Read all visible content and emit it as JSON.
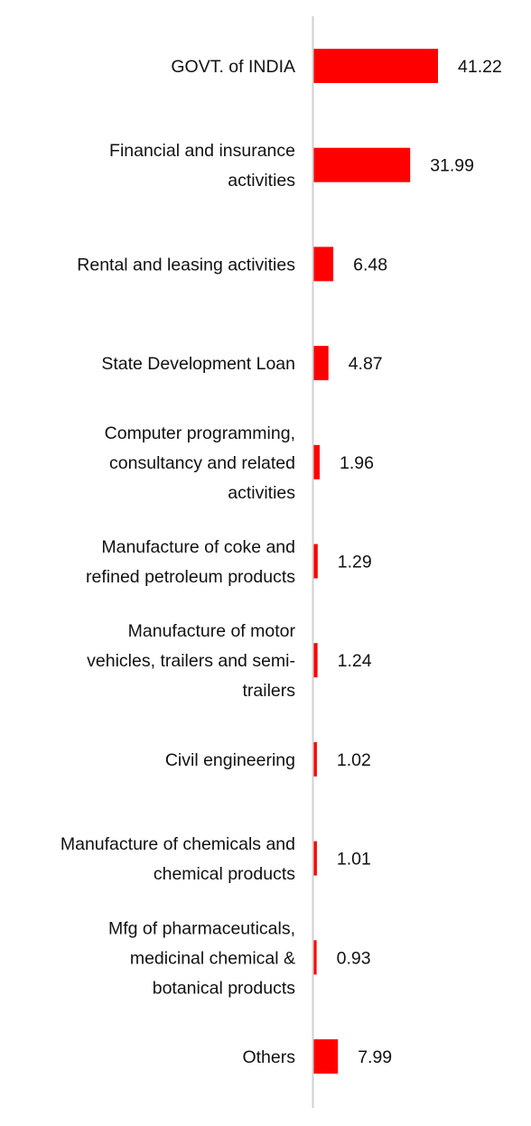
{
  "chart_data": {
    "type": "bar",
    "orientation": "horizontal",
    "title": "",
    "xlabel": "",
    "ylabel": "",
    "categories": [
      "GOVT. of INDIA",
      "Financial and insurance activities",
      "Rental and leasing activities",
      "State Development Loan",
      "Computer programming, consultancy and related activities",
      "Manufacture of coke and refined petroleum products",
      "Manufacture of motor vehicles, trailers and semi-trailers",
      "Civil engineering",
      "Manufacture of chemicals and chemical products",
      "Mfg of pharmaceuticals, medicinal chemical & botanical products",
      "Others"
    ],
    "category_lines": [
      [
        "GOVT. of INDIA"
      ],
      [
        "Financial and insurance",
        "activities"
      ],
      [
        "Rental and leasing activities"
      ],
      [
        "State Development Loan"
      ],
      [
        "Computer programming,",
        "consultancy and related",
        "activities"
      ],
      [
        "Manufacture of coke and",
        "refined petroleum products"
      ],
      [
        "Manufacture of motor",
        "vehicles, trailers and semi-",
        "trailers"
      ],
      [
        "Civil engineering"
      ],
      [
        "Manufacture of chemicals and",
        "chemical products"
      ],
      [
        "Mfg of pharmaceuticals,",
        "medicinal chemical &",
        "botanical products"
      ],
      [
        "Others"
      ]
    ],
    "values": [
      41.22,
      31.99,
      6.48,
      4.87,
      1.96,
      1.29,
      1.24,
      1.02,
      1.01,
      0.93,
      7.99
    ],
    "value_labels": [
      "41.22",
      "31.99",
      "6.48",
      "4.87",
      "1.96",
      "1.29",
      "1.24",
      "1.02",
      "1.01",
      "0.93",
      "7.99"
    ],
    "xlim": [
      0,
      45
    ],
    "grid": false,
    "legend": "none",
    "bar_color": "#ff0000",
    "axis_color": "#d0d0d0"
  }
}
